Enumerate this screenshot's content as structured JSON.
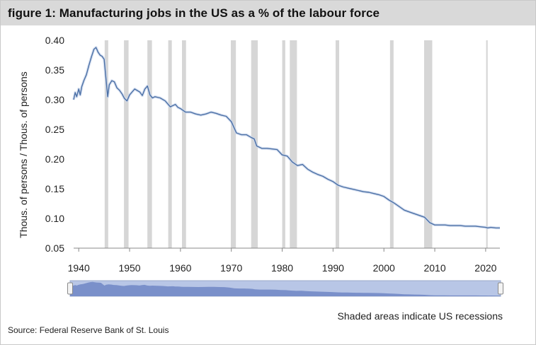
{
  "figure_title": "figure 1: Manufacturing jobs in the US as a % of the labour force",
  "footnote": "Shaded areas indicate US recessions",
  "source": "Source: Federal Reserve Bank of St. Louis",
  "colors": {
    "line": "#4a6fa5",
    "recession": "#d6d6d6",
    "title_bar": "#d9d9d9",
    "navigator": "#b8c6e6",
    "navigator_area": "#6e86c4"
  },
  "chart_data": {
    "type": "line",
    "title": "",
    "xlabel": "",
    "ylabel": "Thous. of persons / Thous. of persons",
    "xlim": [
      1939.0,
      2022.8
    ],
    "ylim": [
      0.05,
      0.4
    ],
    "x_ticks": [
      1940,
      1950,
      1960,
      1970,
      1980,
      1990,
      2000,
      2010,
      2020
    ],
    "x_tick_labels": [
      "1940",
      "1950",
      "1960",
      "1970",
      "1980",
      "1990",
      "2000",
      "2010",
      "2020"
    ],
    "y_ticks": [
      0.05,
      0.1,
      0.15,
      0.2,
      0.25,
      0.3,
      0.35,
      0.4
    ],
    "y_tick_labels": [
      "0.05",
      "0.10",
      "0.15",
      "0.20",
      "0.25",
      "0.30",
      "0.35",
      "0.40"
    ],
    "grid": false,
    "recessions": [
      [
        1945.1,
        1945.8
      ],
      [
        1948.9,
        1949.8
      ],
      [
        1953.5,
        1954.4
      ],
      [
        1957.6,
        1958.3
      ],
      [
        1960.3,
        1961.1
      ],
      [
        1969.9,
        1970.9
      ],
      [
        1973.9,
        1975.2
      ],
      [
        1980.0,
        1980.6
      ],
      [
        1981.5,
        1982.9
      ],
      [
        1990.5,
        1991.2
      ],
      [
        2001.2,
        2001.9
      ],
      [
        2007.9,
        2009.5
      ],
      [
        2020.1,
        2020.4
      ]
    ],
    "series": [
      {
        "x": [
          1939.0,
          1939.3,
          1939.6,
          1940.0,
          1940.3,
          1940.6,
          1941.0,
          1941.5,
          1942.0,
          1942.5,
          1943.0,
          1943.4,
          1943.8,
          1944.2,
          1944.6,
          1945.0,
          1945.3,
          1945.7,
          1946.0,
          1946.5,
          1947.0,
          1947.5,
          1948.0,
          1948.5,
          1949.0,
          1949.5,
          1950.0,
          1950.5,
          1951.0,
          1952.0,
          1952.5,
          1953.0,
          1953.5,
          1954.0,
          1954.5,
          1955.0,
          1956.0,
          1957.0,
          1957.5,
          1958.0,
          1958.5,
          1959.0,
          1959.5,
          1960.0,
          1961.0,
          1962.0,
          1963.0,
          1964.0,
          1965.0,
          1966.0,
          1967.0,
          1968.0,
          1969.0,
          1970.0,
          1971.0,
          1972.0,
          1973.0,
          1974.0,
          1974.5,
          1975.0,
          1976.0,
          1977.0,
          1978.0,
          1979.0,
          1980.0,
          1981.0,
          1982.0,
          1983.0,
          1984.0,
          1985.0,
          1986.0,
          1987.0,
          1988.0,
          1989.0,
          1990.0,
          1991.0,
          1992.0,
          1993.0,
          1994.0,
          1995.0,
          1996.0,
          1997.0,
          1998.0,
          1999.0,
          2000.0,
          2001.0,
          2002.0,
          2003.0,
          2004.0,
          2005.0,
          2006.0,
          2007.0,
          2008.0,
          2009.0,
          2010.0,
          2011.0,
          2012.0,
          2013.0,
          2014.0,
          2015.0,
          2016.0,
          2017.0,
          2018.0,
          2019.0,
          2020.0,
          2020.4,
          2021.0,
          2022.0,
          2022.8
        ],
        "values": [
          0.3,
          0.312,
          0.305,
          0.318,
          0.308,
          0.322,
          0.332,
          0.342,
          0.358,
          0.372,
          0.385,
          0.388,
          0.38,
          0.375,
          0.373,
          0.368,
          0.34,
          0.305,
          0.325,
          0.332,
          0.33,
          0.32,
          0.316,
          0.31,
          0.302,
          0.298,
          0.308,
          0.313,
          0.318,
          0.313,
          0.307,
          0.318,
          0.323,
          0.308,
          0.303,
          0.305,
          0.303,
          0.298,
          0.293,
          0.288,
          0.29,
          0.292,
          0.287,
          0.285,
          0.279,
          0.279,
          0.276,
          0.274,
          0.276,
          0.279,
          0.277,
          0.274,
          0.272,
          0.263,
          0.244,
          0.241,
          0.241,
          0.236,
          0.234,
          0.222,
          0.218,
          0.218,
          0.217,
          0.216,
          0.207,
          0.205,
          0.195,
          0.189,
          0.191,
          0.183,
          0.178,
          0.174,
          0.171,
          0.166,
          0.162,
          0.156,
          0.153,
          0.151,
          0.149,
          0.147,
          0.145,
          0.144,
          0.142,
          0.14,
          0.137,
          0.131,
          0.126,
          0.12,
          0.114,
          0.111,
          0.108,
          0.105,
          0.102,
          0.093,
          0.089,
          0.089,
          0.089,
          0.088,
          0.088,
          0.088,
          0.087,
          0.087,
          0.087,
          0.086,
          0.085,
          0.084,
          0.085,
          0.084,
          0.084
        ]
      }
    ]
  }
}
